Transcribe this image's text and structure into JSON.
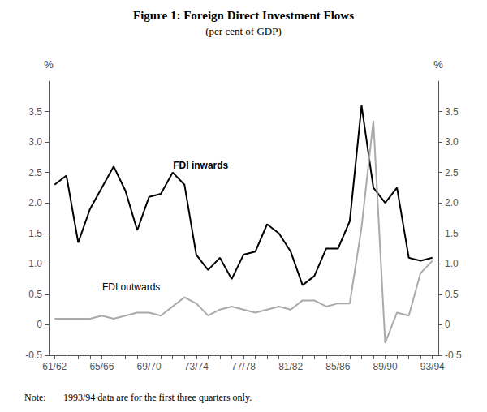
{
  "chart_data": {
    "type": "line",
    "title": "Figure 1: Foreign Direct Investment Flows",
    "subtitle": "(per cent of GDP)",
    "note_label": "Note:",
    "note_text": "1993/94 data are for the first three quarters only.",
    "y_label": "%",
    "y2_label": "%",
    "categories": [
      "61/62",
      null,
      null,
      null,
      "65/66",
      null,
      null,
      null,
      "69/70",
      null,
      null,
      null,
      "73/74",
      null,
      null,
      null,
      "77/78",
      null,
      null,
      null,
      "81/82",
      null,
      null,
      null,
      "85/86",
      null,
      null,
      null,
      "89/90",
      null,
      null,
      null,
      "93/94"
    ],
    "series": [
      {
        "color": "#000000",
        "values": [
          2.3,
          2.45,
          1.35,
          1.9,
          2.25,
          2.6,
          2.2,
          1.55,
          2.1,
          2.15,
          2.5,
          2.3,
          1.15,
          0.9,
          1.1,
          0.75,
          1.15,
          1.2,
          1.65,
          1.5,
          1.2,
          0.65,
          0.8,
          1.25,
          1.25,
          1.7,
          3.6,
          2.25,
          2.0,
          2.25,
          1.1,
          1.05,
          1.1
        ]
      },
      {
        "color": "#aaaaaa",
        "values": [
          0.1,
          0.1,
          0.1,
          0.1,
          0.15,
          0.1,
          0.15,
          0.2,
          0.2,
          0.15,
          0.3,
          0.45,
          0.35,
          0.15,
          0.25,
          0.3,
          0.25,
          0.2,
          0.25,
          0.3,
          0.25,
          0.4,
          0.4,
          0.3,
          0.35,
          0.35,
          1.6,
          3.35,
          -0.3,
          0.2,
          0.15,
          0.85,
          1.05
        ]
      }
    ],
    "annotations": [
      {
        "text": "FDI inwards",
        "x": 10,
        "y": 2.62
      },
      {
        "text": "FDI outwards",
        "x": 4,
        "y": 0.62
      }
    ],
    "ylim": [
      -0.5,
      4.0
    ],
    "yticks": [
      -0.5,
      0,
      0.5,
      {
        "value": 1.0,
        "label": "1.0"
      },
      1.5,
      {
        "value": 2.0,
        "label": "2.0"
      },
      2.5,
      {
        "value": 3.0,
        "label": "3.0"
      },
      3.5
    ],
    "y2lim": [
      -0.5,
      4.0
    ],
    "y2ticks": [
      -0.5,
      0,
      0.5,
      {
        "value": 1.0,
        "label": "1.0"
      },
      1.5,
      {
        "value": 2.0,
        "label": "2.0"
      },
      2.5,
      {
        "value": 3.0,
        "label": "3.0"
      },
      3.5
    ]
  }
}
